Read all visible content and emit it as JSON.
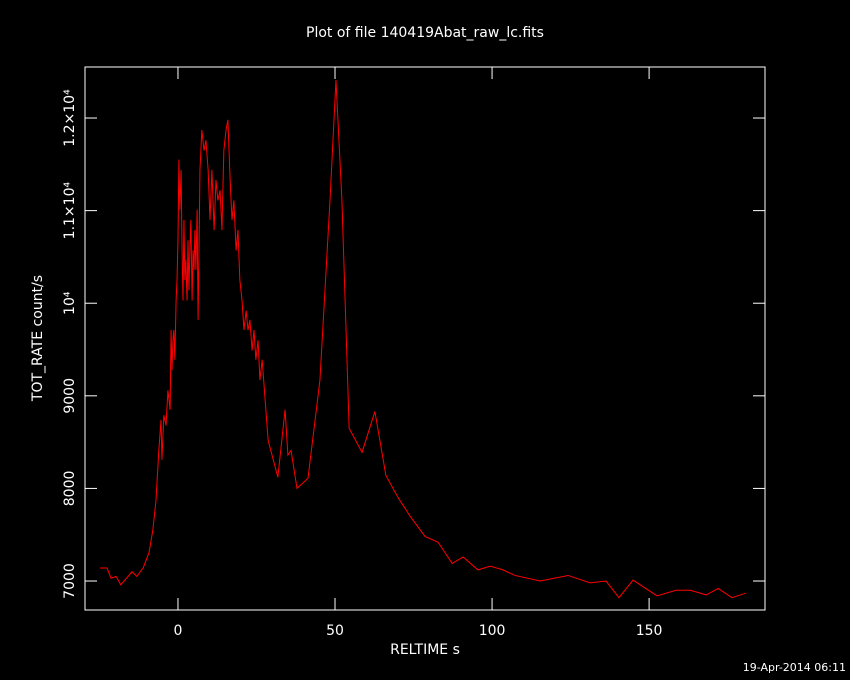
{
  "chart_data": {
    "type": "line",
    "title": "Plot of file 140419Abat_raw_lc.fits",
    "x_label": "RELTIME  s",
    "y_label": "TOT_RATE  count/s",
    "footer": "19-Apr-2014 06:11",
    "xlim": [
      -29.6,
      186.9
    ],
    "ylim": [
      6687,
      12551
    ],
    "xticks": [
      0,
      50,
      100,
      150
    ],
    "yticks": [
      7000,
      8000,
      9000,
      {
        "value": 10000,
        "label": "10⁴"
      },
      {
        "value": 11000,
        "label": "1.1×10⁴"
      },
      {
        "value": 12000,
        "label": "1.2×10⁴"
      }
    ],
    "background": "#000000",
    "axis_color": "#ffffff",
    "series": [
      {
        "name": "TOT_RATE",
        "color": "#ff0000",
        "x": [
          -24.8,
          -22.6,
          -21.3,
          -19.7,
          -18.2,
          -15.9,
          -14.6,
          -13.1,
          -11.1,
          -9.2,
          -8.0,
          -7.0,
          -6.1,
          -5.4,
          -5.1,
          -4.5,
          -3.8,
          -3.2,
          -2.5,
          -2.2,
          -1.9,
          -1.6,
          -1.3,
          -1.0,
          -0.6,
          -0.3,
          0,
          0.3,
          0.6,
          1.0,
          1.3,
          1.6,
          1.9,
          2.2,
          2.5,
          2.9,
          3.2,
          3.5,
          3.8,
          4.1,
          4.5,
          4.8,
          5.1,
          5.4,
          5.7,
          6.1,
          6.4,
          6.7,
          7.0,
          7.6,
          8.3,
          8.9,
          9.6,
          10.2,
          10.8,
          11.5,
          12.1,
          12.7,
          13.4,
          14.0,
          14.6,
          15.3,
          15.9,
          16.6,
          17.2,
          17.8,
          18.5,
          19.1,
          19.7,
          20.4,
          21.0,
          21.7,
          22.3,
          22.9,
          23.6,
          24.2,
          24.8,
          25.5,
          26.1,
          26.8,
          28.7,
          31.8,
          34.1,
          35.0,
          36.0,
          37.9,
          41.4,
          45.2,
          48.4,
          50.3,
          52.2,
          54.5,
          58.6,
          62.7,
          66.2,
          70.1,
          73.9,
          78.7,
          82.8,
          87.3,
          90.8,
          95.5,
          99.4,
          103.5,
          107.3,
          115.3,
          124.2,
          131.2,
          136.3,
          140.4,
          144.9,
          152.5,
          158.6,
          163.1,
          168.2,
          172.0,
          176.4,
          180.9
        ],
        "values": [
          7140,
          7140,
          7030,
          7050,
          6960,
          7050,
          7100,
          7050,
          7140,
          7310,
          7550,
          7870,
          8410,
          8740,
          8310,
          8790,
          8680,
          9060,
          8850,
          9710,
          9280,
          9600,
          9710,
          9390,
          10030,
          10250,
          10680,
          11550,
          11010,
          11440,
          10570,
          10030,
          10900,
          10250,
          10470,
          10030,
          10680,
          10140,
          10570,
          10900,
          10030,
          10570,
          10360,
          10790,
          10360,
          11010,
          9820,
          10570,
          11440,
          11870,
          11650,
          11760,
          11440,
          10900,
          11440,
          10790,
          11330,
          11110,
          11220,
          10790,
          11650,
          11870,
          11980,
          11330,
          10900,
          11110,
          10570,
          10790,
          10250,
          10030,
          9710,
          9920,
          9710,
          9820,
          9490,
          9710,
          9390,
          9600,
          9170,
          9390,
          8520,
          8120,
          8850,
          8360,
          8410,
          8000,
          8110,
          9170,
          11110,
          12410,
          11110,
          8650,
          8390,
          8830,
          8140,
          7900,
          7700,
          7480,
          7420,
          7190,
          7260,
          7120,
          7160,
          7120,
          7060,
          7000,
          7060,
          6980,
          7000,
          6820,
          7010,
          6840,
          6900,
          6900,
          6850,
          6920,
          6820,
          6870
        ]
      }
    ]
  }
}
